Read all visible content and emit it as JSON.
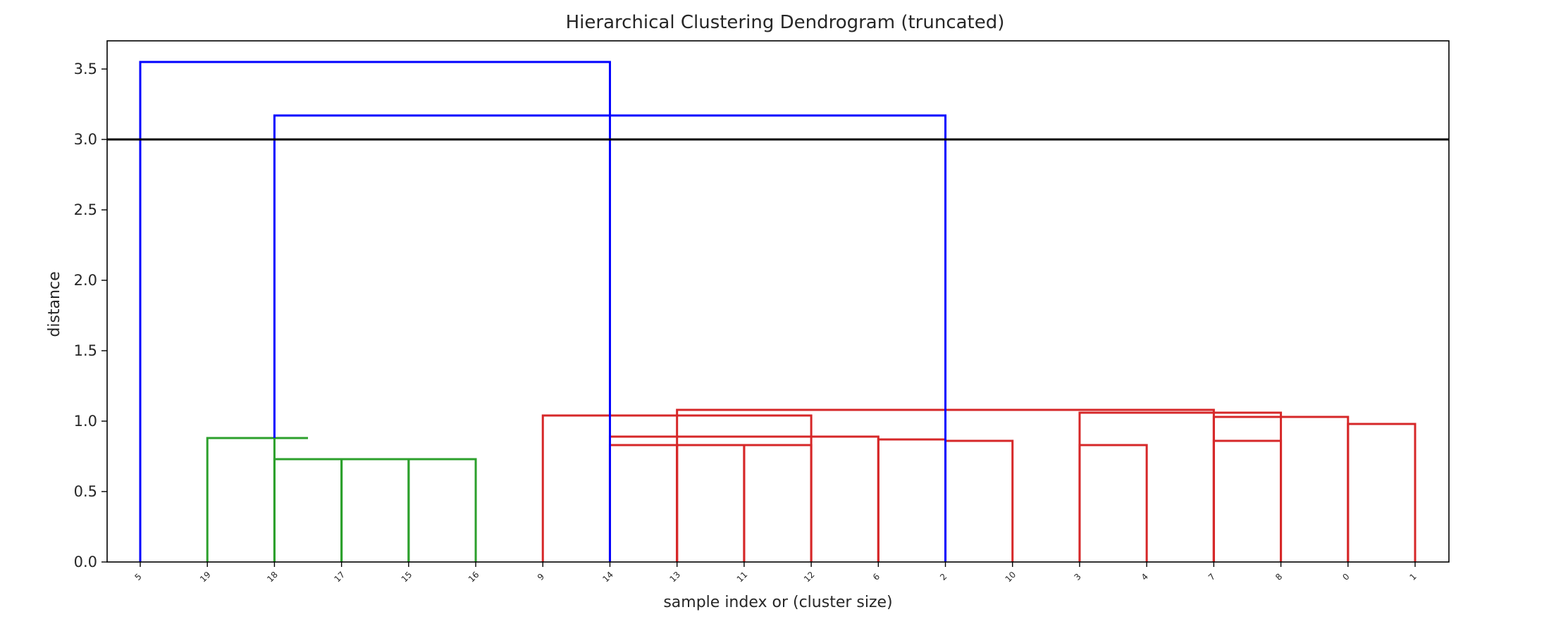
{
  "chart_data": {
    "type": "dendrogram",
    "title": "Hierarchical Clustering Dendrogram (truncated)",
    "xlabel": "sample index or (cluster size)",
    "ylabel": "distance",
    "ylim": [
      0,
      3.7
    ],
    "yticks": [
      0.0,
      0.5,
      1.0,
      1.5,
      2.0,
      2.5,
      3.0,
      3.5
    ],
    "ytick_labels": [
      "0.0",
      "0.5",
      "1.0",
      "1.5",
      "2.0",
      "2.5",
      "3.0",
      "3.5"
    ],
    "leaves": [
      "5",
      "19",
      "18",
      "17",
      "15",
      "16",
      "9",
      "14",
      "13",
      "11",
      "12",
      "6",
      "2",
      "10",
      "3",
      "4",
      "7",
      "8",
      "0",
      "1"
    ],
    "threshold_line": {
      "y": 3.0,
      "color": "#000000"
    },
    "colors": {
      "above_threshold": "#0000ff",
      "cluster_green": "#2ca02c",
      "cluster_red": "#d62728"
    },
    "links": [
      {
        "x": [
          2,
          3,
          3,
          2.5
        ],
        "y": [
          0.0,
          0.0,
          0.73,
          0.73
        ],
        "color": "green"
      },
      {
        "x": [
          3,
          4,
          4,
          3.5
        ],
        "y": [
          0.0,
          0.0,
          0.73,
          0.73
        ],
        "color": "green"
      },
      {
        "x": [
          4,
          5,
          5,
          4.5
        ],
        "y": [
          0.0,
          0.0,
          0.73,
          0.73
        ],
        "color": "green"
      },
      {
        "x": [
          1,
          2,
          2,
          1.5
        ],
        "y": [
          0.0,
          0.0,
          0.88,
          0.88
        ],
        "color": "green"
      },
      {
        "x": [
          8,
          9,
          9,
          8.5
        ],
        "y": [
          0.0,
          0.0,
          0.83,
          0.83
        ],
        "color": "red"
      },
      {
        "x": [
          9,
          10,
          10,
          9.5
        ],
        "y": [
          0.0,
          0.0,
          0.83,
          0.83
        ],
        "color": "red"
      },
      {
        "x": [
          7,
          8,
          8,
          7.5
        ],
        "y": [
          0.0,
          0.0,
          0.83,
          0.83
        ],
        "color": "red"
      },
      {
        "x": [
          12,
          13,
          13,
          12.5
        ],
        "y": [
          0.0,
          0.0,
          0.86,
          0.86
        ],
        "color": "red"
      },
      {
        "x": [
          11,
          12,
          12,
          11.5
        ],
        "y": [
          0.0,
          0.0,
          0.87,
          0.87
        ],
        "color": "red"
      },
      {
        "x": [
          7,
          11,
          11,
          9
        ],
        "y": [
          0.0,
          0.0,
          0.89,
          0.89
        ],
        "color": "red"
      },
      {
        "x": [
          6,
          10,
          10,
          8
        ],
        "y": [
          0.0,
          0.0,
          1.04,
          1.04
        ],
        "color": "red"
      },
      {
        "x": [
          14,
          15,
          15,
          14.5
        ],
        "y": [
          0.0,
          0.0,
          0.83,
          0.83
        ],
        "color": "red"
      },
      {
        "x": [
          16,
          17,
          17,
          16.5
        ],
        "y": [
          0.0,
          0.0,
          0.86,
          0.86
        ],
        "color": "red"
      },
      {
        "x": [
          18,
          19,
          19,
          18.5
        ],
        "y": [
          0.0,
          0.0,
          0.98,
          0.98
        ],
        "color": "red"
      },
      {
        "x": [
          16,
          18,
          18,
          17
        ],
        "y": [
          0.0,
          0.0,
          1.03,
          1.03
        ],
        "color": "red"
      },
      {
        "x": [
          14,
          17,
          17,
          15.5
        ],
        "y": [
          0.0,
          0.0,
          1.06,
          1.06
        ],
        "color": "red"
      },
      {
        "x": [
          8,
          16,
          16,
          12
        ],
        "y": [
          0.0,
          0.0,
          1.08,
          1.08
        ],
        "color": "red"
      },
      {
        "x": [
          1.5,
          2.5,
          2.5,
          2
        ],
        "y": [
          0.88,
          0.88,
          0.88,
          0.88
        ],
        "color": "green"
      },
      {
        "x": [
          2,
          12,
          12,
          7
        ],
        "y": [
          0.88,
          0.0,
          3.17,
          3.17
        ],
        "color": "blue"
      },
      {
        "x": [
          0,
          7,
          7,
          3.5
        ],
        "y": [
          0.0,
          0.0,
          3.55,
          3.55
        ],
        "color": "blue"
      }
    ]
  }
}
